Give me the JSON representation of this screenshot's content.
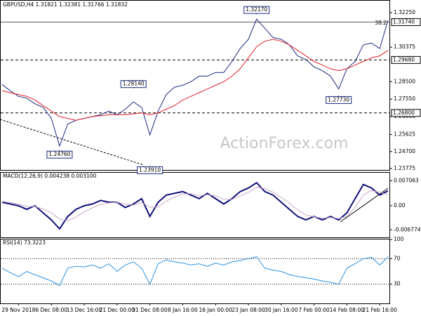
{
  "chart_data": [
    {
      "type": "line",
      "title": "GBPUSD,H4  1.31821 1.32381 1.31766 1.31832",
      "fib_label": "38.2",
      "watermark": "ActionForex.com",
      "series": [
        {
          "name": "Close",
          "color": "#1c2a80",
          "values": [
            1.2835,
            1.28,
            1.277,
            1.276,
            1.273,
            1.271,
            1.265,
            1.25,
            1.262,
            1.264,
            1.265,
            1.266,
            1.267,
            1.269,
            1.267,
            1.27,
            1.274,
            1.271,
            1.256,
            1.269,
            1.278,
            1.282,
            1.283,
            1.285,
            1.288,
            1.288,
            1.29,
            1.29,
            1.296,
            1.303,
            1.308,
            1.319,
            1.314,
            1.309,
            1.308,
            1.305,
            1.299,
            1.297,
            1.293,
            1.291,
            1.288,
            1.281,
            1.292,
            1.296,
            1.305,
            1.306,
            1.303,
            1.3183
          ]
        },
        {
          "name": "MA",
          "color": "#e0202a",
          "values": [
            1.28,
            1.279,
            1.278,
            1.277,
            1.275,
            1.272,
            1.269,
            1.266,
            1.265,
            1.264,
            1.265,
            1.266,
            1.2665,
            1.267,
            1.267,
            1.267,
            1.2675,
            1.268,
            1.267,
            1.268,
            1.27,
            1.272,
            1.275,
            1.277,
            1.279,
            1.281,
            1.283,
            1.285,
            1.288,
            1.292,
            1.298,
            1.304,
            1.307,
            1.308,
            1.307,
            1.305,
            1.302,
            1.299,
            1.296,
            1.294,
            1.292,
            1.291,
            1.292,
            1.294,
            1.296,
            1.298,
            1.299,
            1.302
          ]
        }
      ],
      "ylim": [
        1.2366,
        1.3294
      ],
      "yticks": [
        {
          "value": 1.3225,
          "label": "1.32250"
        },
        {
          "value": 1.30375,
          "label": "1.30375"
        },
        {
          "value": 1.285,
          "label": "1.28500"
        },
        {
          "value": 1.2755,
          "label": "1.27550"
        },
        {
          "value": 1.266,
          "label": "1.26600"
        },
        {
          "value": 1.25625,
          "label": "1.25625"
        },
        {
          "value": 1.247,
          "label": "1.24700"
        },
        {
          "value": 1.23775,
          "label": "1.23775"
        }
      ],
      "levels": [
        {
          "value": 1.3174,
          "label": "1.31740",
          "style": "solid"
        },
        {
          "value": 1.2968,
          "label": "1.29680",
          "style": "dashed"
        },
        {
          "value": 1.268,
          "label": "1.26800",
          "style": "dashed"
        }
      ],
      "annotations": [
        {
          "label": "1.32170",
          "value": 1.3217,
          "index": 31
        },
        {
          "label": "1.28140",
          "value": 1.2814,
          "index": 16
        },
        {
          "label": "1.27730",
          "value": 1.2773,
          "index": 41
        },
        {
          "label": "1.24760",
          "value": 1.2476,
          "index": 7
        },
        {
          "label": "1.23910",
          "value": 1.2391,
          "index": 18
        }
      ]
    },
    {
      "type": "line",
      "title": "MACD(12,26,9) 0.004238 0.003100",
      "series": [
        {
          "name": "MACD",
          "color": "#10107a",
          "values": [
            0.001,
            0.0005,
            0.0,
            -0.001,
            0.0,
            -0.002,
            -0.004,
            -0.0065,
            -0.003,
            -0.001,
            0.0,
            0.0005,
            0.0015,
            0.001,
            0.001,
            -0.0005,
            0.0005,
            0.002,
            -0.003,
            0.001,
            0.003,
            0.0035,
            0.004,
            0.003,
            0.002,
            0.0035,
            0.002,
            0.0005,
            0.002,
            0.004,
            0.005,
            0.0065,
            0.004,
            0.003,
            0.001,
            -0.001,
            -0.003,
            -0.004,
            -0.003,
            -0.004,
            -0.003,
            -0.004,
            -0.002,
            0.002,
            0.006,
            0.005,
            0.003,
            0.0042
          ]
        },
        {
          "name": "Signal",
          "color": "#c8a8c8",
          "values": [
            0.0012,
            0.0009,
            0.0005,
            -0.0002,
            -0.0002,
            -0.0009,
            -0.002,
            -0.0038,
            -0.0042,
            -0.0032,
            -0.0018,
            -0.0006,
            0.0004,
            0.0008,
            0.001,
            0.0004,
            0.0002,
            0.0009,
            -0.0004,
            -0.0004,
            0.0013,
            0.0025,
            0.0033,
            0.0034,
            0.0028,
            0.0031,
            0.0028,
            0.0018,
            0.0018,
            0.0028,
            0.0038,
            0.0052,
            0.0048,
            0.0038,
            0.0024,
            0.0008,
            -0.0012,
            -0.0026,
            -0.0031,
            -0.0035,
            -0.0033,
            -0.0036,
            -0.003,
            -0.0005,
            0.003,
            0.0043,
            0.0038,
            0.0031
          ]
        }
      ],
      "ylim": [
        -0.0089,
        0.0093
      ],
      "yticks": [
        {
          "value": 0.007063,
          "label": "0.007063"
        },
        {
          "value": 0,
          "label": "0.00"
        },
        {
          "value": -0.006774,
          "label": "-0.006774"
        }
      ]
    },
    {
      "type": "line",
      "title": "RSI(14) 73.3223",
      "categories": [
        null,
        null,
        "29 Nov 2018",
        null,
        null,
        null,
        "6 Dec 08:00",
        null,
        null,
        null,
        "13 Dec 16:00",
        null,
        null,
        null,
        "21 Dec 00:00",
        null,
        null,
        null,
        "31 Dec 08:00",
        null,
        null,
        null,
        "8 Jan 16:00",
        null,
        null,
        null,
        "16 Jan 00:00",
        null,
        null,
        null,
        "23 Jan 08:00",
        null,
        null,
        null,
        "30 Jan 16:00",
        null,
        null,
        null,
        "7 Feb 00:00",
        null,
        null,
        null,
        "14 Feb 08:00",
        null,
        null,
        null,
        "21 Feb 16:00",
        null
      ],
      "series": [
        {
          "name": "RSI",
          "color": "#2a90e0",
          "values": [
            55,
            48,
            42,
            50,
            45,
            40,
            35,
            28,
            55,
            58,
            57,
            60,
            55,
            62,
            50,
            60,
            65,
            55,
            30,
            62,
            68,
            65,
            63,
            60,
            62,
            58,
            63,
            60,
            65,
            67,
            70,
            73,
            55,
            52,
            50,
            45,
            42,
            40,
            38,
            35,
            33,
            30,
            55,
            62,
            70,
            72,
            60,
            73
          ]
        }
      ],
      "ylim": [
        0,
        100
      ],
      "yticks": [
        100,
        70,
        30
      ],
      "levels": [
        {
          "value": 70,
          "style": "dotted"
        },
        {
          "value": 30,
          "style": "dotted"
        }
      ]
    }
  ]
}
